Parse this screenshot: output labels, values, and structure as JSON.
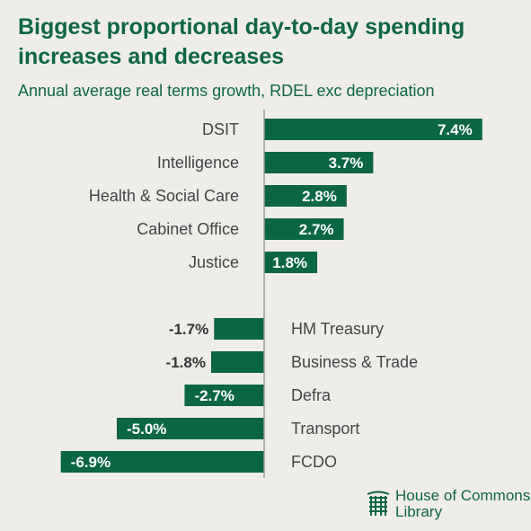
{
  "title": "Biggest proportional day-to-day spending increases and decreases",
  "subtitle": "Annual average real terms growth, RDEL exc depreciation",
  "logo": {
    "line1": "House of Commons",
    "line2": "Library"
  },
  "colors": {
    "bar": "#0b6644",
    "text": "#0f6644",
    "label": "#444444",
    "value_positive": "#ffffff",
    "value_negative_outside": "#333333",
    "axis": "#999999"
  },
  "chart_data": {
    "type": "bar",
    "orientation": "horizontal",
    "title": "Biggest proportional day-to-day spending increases and decreases",
    "subtitle": "Annual average real terms growth, RDEL exc depreciation",
    "unit": "%",
    "categories": [
      "DSIT",
      "Intelligence",
      "Health & Social Care",
      "Cabinet Office",
      "Justice",
      "HM Treasury",
      "Business & Trade",
      "Defra",
      "Transport",
      "FCDO"
    ],
    "values": [
      7.4,
      3.7,
      2.8,
      2.7,
      1.8,
      -1.7,
      -1.8,
      -2.7,
      -5.0,
      -6.9
    ],
    "value_labels": [
      "7.4%",
      "3.7%",
      "2.8%",
      "2.7%",
      "1.8%",
      "-1.7%",
      "-1.8%",
      "-2.7%",
      "-5.0%",
      "-6.9%"
    ],
    "groups": [
      "increases",
      "increases",
      "increases",
      "increases",
      "increases",
      "decreases",
      "decreases",
      "decreases",
      "decreases",
      "decreases"
    ],
    "xlim": [
      -7.0,
      7.5
    ],
    "grid": false,
    "legend": "none"
  }
}
